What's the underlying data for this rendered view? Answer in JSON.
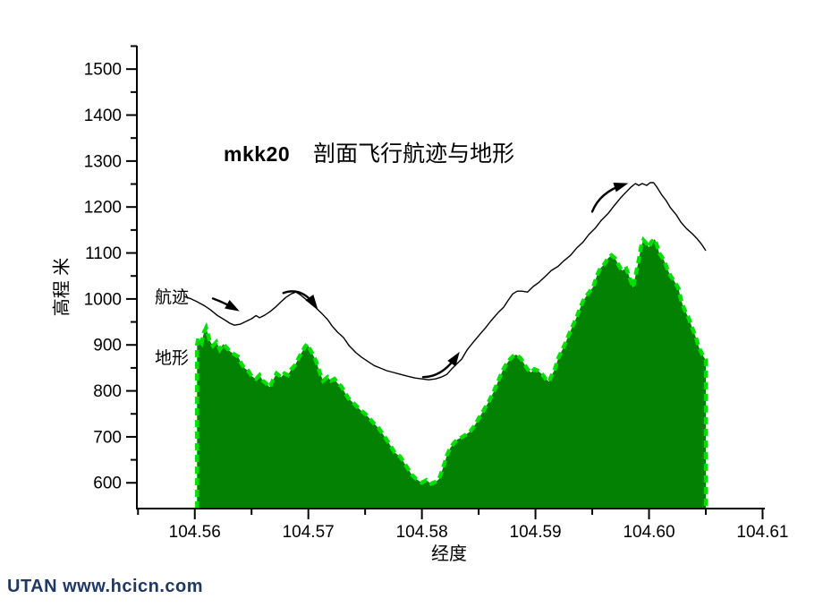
{
  "title": {
    "prefix": "mkk20",
    "text": "剖面飞行航迹与地形"
  },
  "watermark": "UTAN  www.hcicn.com",
  "chart_data": {
    "type": "area",
    "title": "mkk20 剖面飞行航迹与地形",
    "xlabel": "经度",
    "ylabel": "高程 米",
    "xlim": [
      104.5549,
      104.6102
    ],
    "ylim": [
      544,
      1551
    ],
    "x_ticks": [
      104.56,
      104.57,
      104.58,
      104.59,
      104.6,
      104.61
    ],
    "x_minor_ticks": [
      104.555,
      104.565,
      104.575,
      104.585,
      104.595,
      104.605
    ],
    "y_ticks": [
      600,
      700,
      800,
      900,
      1000,
      1100,
      1200,
      1300,
      1400,
      1500
    ],
    "y_minor_ticks": [
      650,
      750,
      850,
      950,
      1050,
      1150,
      1250,
      1350,
      1450,
      1550
    ],
    "grid": false,
    "legend_position": "inline-left-labels",
    "colors": {
      "terrain_fill": "#038103",
      "terrain_edge": "#00df00",
      "flight_line": "#000000",
      "axis": "#000000",
      "watermark": "#1f3864"
    },
    "series": [
      {
        "name": "航迹",
        "type": "line",
        "color": "#000000",
        "points": [
          [
            104.5591,
            1005
          ],
          [
            104.5596,
            1001
          ],
          [
            104.5602,
            994
          ],
          [
            104.5608,
            986
          ],
          [
            104.5614,
            976
          ],
          [
            104.562,
            964
          ],
          [
            104.5626,
            955
          ],
          [
            104.5631,
            947
          ],
          [
            104.5635,
            943
          ],
          [
            104.564,
            945
          ],
          [
            104.5645,
            951
          ],
          [
            104.565,
            957
          ],
          [
            104.5654,
            964
          ],
          [
            104.5657,
            959
          ],
          [
            104.5661,
            964
          ],
          [
            104.5666,
            972
          ],
          [
            104.5671,
            982
          ],
          [
            104.5676,
            994
          ],
          [
            104.568,
            1003
          ],
          [
            104.5685,
            1011
          ],
          [
            104.5689,
            1015
          ],
          [
            104.5693,
            1009
          ],
          [
            104.5698,
            999
          ],
          [
            104.5702,
            990
          ],
          [
            104.5707,
            980
          ],
          [
            104.5712,
            968
          ],
          [
            104.5717,
            955
          ],
          [
            104.5721,
            941
          ],
          [
            104.5726,
            927
          ],
          [
            104.5731,
            916
          ],
          [
            104.5736,
            898
          ],
          [
            104.5742,
            883
          ],
          [
            104.5747,
            873
          ],
          [
            104.5753,
            863
          ],
          [
            104.5758,
            855
          ],
          [
            104.5764,
            849
          ],
          [
            104.5769,
            844
          ],
          [
            104.5775,
            840
          ],
          [
            104.5781,
            836
          ],
          [
            104.5787,
            832
          ],
          [
            104.5794,
            828
          ],
          [
            104.58,
            826
          ],
          [
            104.5806,
            824
          ],
          [
            104.5812,
            826
          ],
          [
            104.5817,
            830
          ],
          [
            104.5822,
            836
          ],
          [
            104.5826,
            847
          ],
          [
            104.583,
            857
          ],
          [
            104.5835,
            869
          ],
          [
            104.584,
            890
          ],
          [
            104.5846,
            908
          ],
          [
            104.5851,
            923
          ],
          [
            104.5856,
            937
          ],
          [
            104.5861,
            953
          ],
          [
            104.5867,
            970
          ],
          [
            104.5872,
            982
          ],
          [
            104.5876,
            997
          ],
          [
            104.588,
            1011
          ],
          [
            104.5884,
            1017
          ],
          [
            104.5888,
            1017
          ],
          [
            104.5893,
            1015
          ],
          [
            104.5898,
            1027
          ],
          [
            104.5903,
            1036
          ],
          [
            104.5909,
            1050
          ],
          [
            104.5914,
            1062
          ],
          [
            104.592,
            1071
          ],
          [
            104.5925,
            1083
          ],
          [
            104.5931,
            1095
          ],
          [
            104.5936,
            1110
          ],
          [
            104.5942,
            1124
          ],
          [
            104.5947,
            1140
          ],
          [
            104.5953,
            1155
          ],
          [
            104.5958,
            1171
          ],
          [
            104.5964,
            1186
          ],
          [
            104.5969,
            1202
          ],
          [
            104.5975,
            1220
          ],
          [
            104.598,
            1233
          ],
          [
            104.5984,
            1243
          ],
          [
            104.5988,
            1251
          ],
          [
            104.5991,
            1247
          ],
          [
            104.5994,
            1251
          ],
          [
            104.5998,
            1247
          ],
          [
            104.6001,
            1253
          ],
          [
            104.6004,
            1253
          ],
          [
            104.6007,
            1243
          ],
          [
            104.6011,
            1227
          ],
          [
            104.6015,
            1214
          ],
          [
            104.6019,
            1198
          ],
          [
            104.6024,
            1183
          ],
          [
            104.6028,
            1167
          ],
          [
            104.6033,
            1153
          ],
          [
            104.6038,
            1142
          ],
          [
            104.6042,
            1132
          ],
          [
            104.6046,
            1120
          ],
          [
            104.605,
            1105
          ]
        ]
      },
      {
        "name": "地形",
        "type": "area",
        "fill": "#038103",
        "stroke": "#00df00",
        "points": [
          [
            104.5602,
            900
          ],
          [
            104.5603,
            914
          ],
          [
            104.5606,
            904
          ],
          [
            104.5608,
            927
          ],
          [
            104.561,
            937
          ],
          [
            104.5613,
            910
          ],
          [
            104.5616,
            898
          ],
          [
            104.5619,
            906
          ],
          [
            104.5622,
            890
          ],
          [
            104.5625,
            902
          ],
          [
            104.5628,
            894
          ],
          [
            104.5631,
            886
          ],
          [
            104.5635,
            879
          ],
          [
            104.5638,
            875
          ],
          [
            104.5641,
            859
          ],
          [
            104.5644,
            849
          ],
          [
            104.5647,
            844
          ],
          [
            104.565,
            832
          ],
          [
            104.5654,
            826
          ],
          [
            104.5657,
            834
          ],
          [
            104.566,
            822
          ],
          [
            104.5663,
            816
          ],
          [
            104.5666,
            808
          ],
          [
            104.5669,
            824
          ],
          [
            104.5672,
            838
          ],
          [
            104.5676,
            830
          ],
          [
            104.5679,
            838
          ],
          [
            104.5682,
            834
          ],
          [
            104.5685,
            847
          ],
          [
            104.5688,
            855
          ],
          [
            104.5691,
            869
          ],
          [
            104.5694,
            883
          ],
          [
            104.5697,
            896
          ],
          [
            104.5699,
            902
          ],
          [
            104.5702,
            888
          ],
          [
            104.5704,
            879
          ],
          [
            104.5707,
            863
          ],
          [
            104.571,
            840
          ],
          [
            104.5713,
            822
          ],
          [
            104.5717,
            830
          ],
          [
            104.572,
            822
          ],
          [
            104.5723,
            826
          ],
          [
            104.5726,
            816
          ],
          [
            104.5729,
            810
          ],
          [
            104.5732,
            797
          ],
          [
            104.5735,
            785
          ],
          [
            104.5739,
            775
          ],
          [
            104.5742,
            768
          ],
          [
            104.5746,
            758
          ],
          [
            104.575,
            750
          ],
          [
            104.5754,
            740
          ],
          [
            104.5757,
            731
          ],
          [
            104.5762,
            719
          ],
          [
            104.5767,
            701
          ],
          [
            104.5772,
            682
          ],
          [
            104.5776,
            666
          ],
          [
            104.5781,
            657
          ],
          [
            104.5786,
            637
          ],
          [
            104.5791,
            618
          ],
          [
            104.5795,
            608
          ],
          [
            104.58,
            600
          ],
          [
            104.5804,
            606
          ],
          [
            104.5808,
            598
          ],
          [
            104.5812,
            602
          ],
          [
            104.5815,
            608
          ],
          [
            104.5817,
            621
          ],
          [
            104.582,
            643
          ],
          [
            104.5822,
            660
          ],
          [
            104.5825,
            676
          ],
          [
            104.5828,
            686
          ],
          [
            104.5831,
            694
          ],
          [
            104.5835,
            699
          ],
          [
            104.5839,
            705
          ],
          [
            104.5843,
            713
          ],
          [
            104.5847,
            727
          ],
          [
            104.5851,
            744
          ],
          [
            104.5855,
            760
          ],
          [
            104.5859,
            777
          ],
          [
            104.5863,
            797
          ],
          [
            104.5867,
            820
          ],
          [
            104.5871,
            844
          ],
          [
            104.5874,
            857
          ],
          [
            104.5877,
            867
          ],
          [
            104.588,
            875
          ],
          [
            104.5883,
            879
          ],
          [
            104.5887,
            871
          ],
          [
            104.589,
            859
          ],
          [
            104.5893,
            847
          ],
          [
            104.5896,
            840
          ],
          [
            104.5899,
            847
          ],
          [
            104.5902,
            844
          ],
          [
            104.5906,
            836
          ],
          [
            104.5909,
            826
          ],
          [
            104.5912,
            820
          ],
          [
            104.5914,
            832
          ],
          [
            104.5917,
            847
          ],
          [
            104.592,
            871
          ],
          [
            104.5923,
            886
          ],
          [
            104.5926,
            902
          ],
          [
            104.5929,
            920
          ],
          [
            104.5932,
            937
          ],
          [
            104.5935,
            953
          ],
          [
            104.5939,
            978
          ],
          [
            104.5942,
            996
          ],
          [
            104.5945,
            1007
          ],
          [
            104.5948,
            1017
          ],
          [
            104.5951,
            1027
          ],
          [
            104.5954,
            1050
          ],
          [
            104.5957,
            1066
          ],
          [
            104.5961,
            1077
          ],
          [
            104.5964,
            1089
          ],
          [
            104.5967,
            1095
          ],
          [
            104.597,
            1089
          ],
          [
            104.5973,
            1075
          ],
          [
            104.5976,
            1062
          ],
          [
            104.598,
            1066
          ],
          [
            104.5983,
            1046
          ],
          [
            104.5986,
            1025
          ],
          [
            104.5988,
            1050
          ],
          [
            104.5991,
            1085
          ],
          [
            104.5993,
            1114
          ],
          [
            104.5995,
            1128
          ],
          [
            104.5998,
            1120
          ],
          [
            104.6,
            1112
          ],
          [
            104.6002,
            1124
          ],
          [
            104.6005,
            1130
          ],
          [
            104.6007,
            1116
          ],
          [
            104.6009,
            1100
          ],
          [
            104.6013,
            1085
          ],
          [
            104.6016,
            1066
          ],
          [
            104.6019,
            1050
          ],
          [
            104.6022,
            1040
          ],
          [
            104.6026,
            1023
          ],
          [
            104.6028,
            999
          ],
          [
            104.6031,
            978
          ],
          [
            104.6035,
            958
          ],
          [
            104.6038,
            937
          ],
          [
            104.6041,
            918
          ],
          [
            104.6044,
            894
          ],
          [
            104.6047,
            879
          ],
          [
            104.605,
            867
          ]
        ]
      }
    ],
    "annotations": {
      "arrows": [
        {
          "tail": [
            104.5616,
            1001
          ],
          "ctrl": [
            104.5626,
            992
          ],
          "head": [
            104.5636,
            978
          ]
        },
        {
          "tail": [
            104.5678,
            1013
          ],
          "ctrl": [
            104.5694,
            1027
          ],
          "head": [
            104.5706,
            986
          ]
        },
        {
          "tail": [
            104.5801,
            830
          ],
          "ctrl": [
            104.5818,
            830
          ],
          "head": [
            104.5831,
            877
          ]
        },
        {
          "tail": [
            104.595,
            1190
          ],
          "ctrl": [
            104.5957,
            1233
          ],
          "head": [
            104.5978,
            1249
          ]
        }
      ]
    }
  }
}
